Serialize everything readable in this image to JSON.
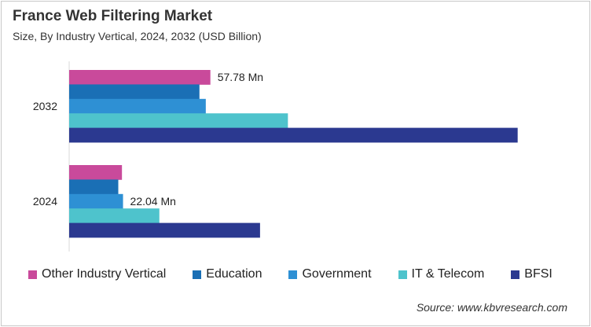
{
  "title": "France Web Filtering Market",
  "subtitle": "Size, By Industry Vertical, 2024, 2032 (USD Billion)",
  "source": "Source: www.kbvresearch.com",
  "chart_data": {
    "type": "bar",
    "orientation": "horizontal",
    "categories": [
      "2032",
      "2024"
    ],
    "series": [
      {
        "name": "Other Industry Vertical",
        "color": "#c94a9b",
        "values": [
          57.78,
          21.6
        ]
      },
      {
        "name": "Education",
        "color": "#1a6fb5",
        "values": [
          53.3,
          20.1
        ]
      },
      {
        "name": "Government",
        "color": "#2e90d4",
        "values": [
          55.9,
          22.04
        ]
      },
      {
        "name": "IT & Telecom",
        "color": "#4ec3cc",
        "values": [
          89.5,
          36.9
        ]
      },
      {
        "name": "BFSI",
        "color": "#2b3990",
        "values": [
          183.5,
          78.1
        ]
      }
    ],
    "data_labels": [
      {
        "category": "2032",
        "series": "Other Industry Vertical",
        "text": "57.78 Mn"
      },
      {
        "category": "2024",
        "series": "Government",
        "text": "22.04 Mn"
      }
    ],
    "xlim": [
      0,
      200
    ],
    "grid": false,
    "legend_position": "bottom"
  }
}
